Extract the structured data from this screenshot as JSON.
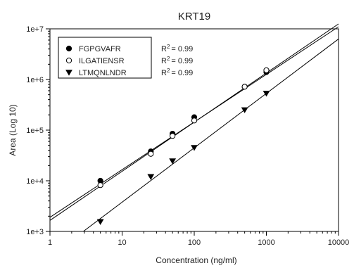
{
  "chart_data": {
    "type": "scatter",
    "title": "KRT19",
    "xlabel": "Concentration (ng/ml)",
    "ylabel": "Area (Log 10)",
    "x_scale": "log",
    "y_scale": "log",
    "xlim": [
      1,
      10000
    ],
    "ylim": [
      1000,
      10000000
    ],
    "x_tick_values": [
      1,
      10,
      100,
      1000,
      10000
    ],
    "x_tick_labels": [
      "1",
      "10",
      "100",
      "1000",
      "10000"
    ],
    "y_tick_values": [
      1000,
      10000,
      100000,
      1000000,
      10000000
    ],
    "y_tick_labels": [
      "1e+3",
      "1e+4",
      "1e+5",
      "1e+6",
      "1e+7"
    ],
    "grid": false,
    "legend_position": "top-left",
    "series": [
      {
        "name": "FGPGVAFR",
        "marker": "filled-circle",
        "r2_label": "R",
        "r2_sup": "2",
        "r2_value": "= 0.99",
        "x": [
          5,
          25,
          50,
          100,
          500,
          1000
        ],
        "y": [
          10000,
          38000,
          85000,
          180000,
          720000,
          1400000
        ],
        "fit": [
          [
            1,
            1900
          ],
          [
            10000,
            11000000
          ]
        ]
      },
      {
        "name": "ILGATIENSR",
        "marker": "open-circle",
        "r2_label": "R",
        "r2_sup": "2",
        "r2_value": "= 0.99",
        "x": [
          5,
          25,
          50,
          100,
          500,
          1000
        ],
        "y": [
          8200,
          34000,
          77000,
          155000,
          720000,
          1520000
        ],
        "fit": [
          [
            1,
            1650
          ],
          [
            10000,
            12500000
          ]
        ]
      },
      {
        "name": "LTMQNLNDR",
        "marker": "filled-triangle-down",
        "r2_label": "R",
        "r2_sup": "2",
        "r2_value": "= 0.99",
        "x": [
          5,
          25,
          50,
          100,
          500,
          1000
        ],
        "y": [
          1550,
          12000,
          24500,
          45000,
          250000,
          530000
        ],
        "fit": [
          [
            2.9,
            1000
          ],
          [
            10000,
            6300000
          ]
        ]
      }
    ]
  }
}
